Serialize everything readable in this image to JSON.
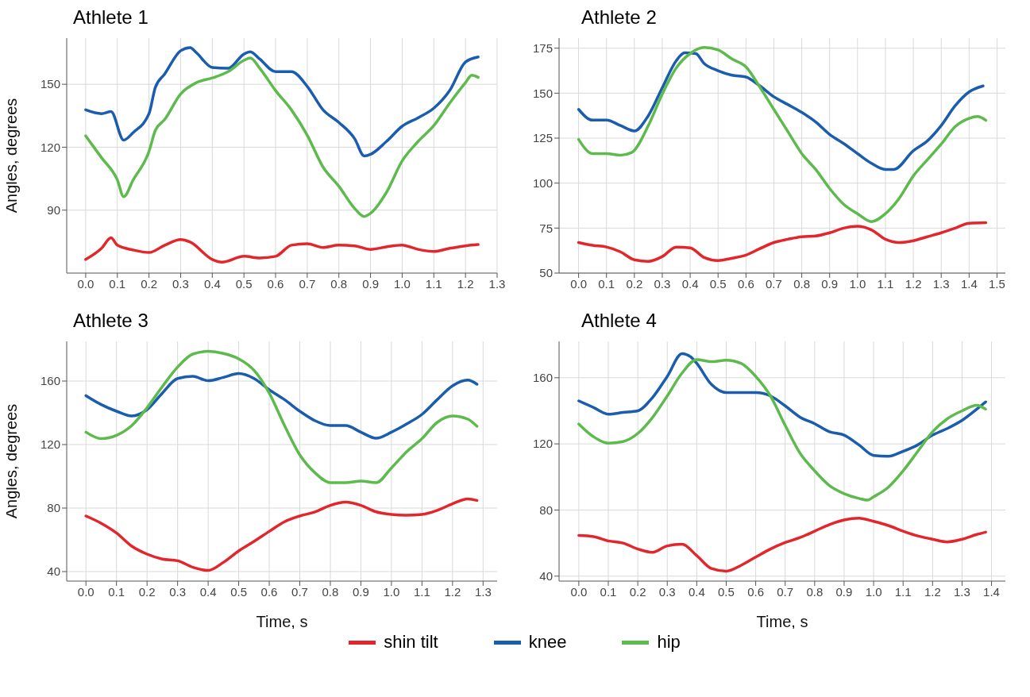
{
  "chart_data": [
    {
      "type": "line",
      "title": "Athlete 1",
      "ylabel": "Angles, degrees",
      "xlim": [
        -0.06,
        1.3
      ],
      "ylim": [
        60,
        172
      ],
      "yticks": [
        90,
        120,
        150
      ],
      "xticks": [
        {
          "value": 0,
          "label": "0.0"
        },
        {
          "value": 0.1,
          "label": "0.1"
        },
        {
          "value": 0.2,
          "label": "0.2"
        },
        {
          "value": 0.3,
          "label": "0.3"
        },
        {
          "value": 0.4,
          "label": "0.4"
        },
        {
          "value": 0.5,
          "label": "0.5"
        },
        {
          "value": 0.6,
          "label": "0.6"
        },
        {
          "value": 0.7,
          "label": "0.7"
        },
        {
          "value": 0.8,
          "label": "0.8"
        },
        {
          "value": 0.9,
          "label": "0.9"
        },
        {
          "value": 1,
          "label": "1.0"
        },
        {
          "value": 1.1,
          "label": "1.1"
        },
        {
          "value": 1.2,
          "label": "1.2"
        },
        {
          "value": 1.3,
          "label": "1.3"
        }
      ],
      "grid": true,
      "legend": "bottom",
      "series": [
        {
          "name": "shin tilt",
          "color": "#e3262b",
          "x": [
            0,
            0.05,
            0.08,
            0.1,
            0.15,
            0.2,
            0.25,
            0.3,
            0.33,
            0.4,
            0.43,
            0.5,
            0.55,
            0.6,
            0.65,
            0.7,
            0.75,
            0.8,
            0.85,
            0.9,
            0.95,
            1,
            1.05,
            1.1,
            1.15,
            1.2,
            1.24
          ],
          "values": [
            66.5,
            71.8,
            76.8,
            73.3,
            71,
            69.8,
            73.3,
            76,
            74.8,
            66.5,
            65.2,
            68,
            67.2,
            68,
            73.3,
            74,
            72.2,
            73.3,
            73,
            71.3,
            72.5,
            73.3,
            71.3,
            70.3,
            71.8,
            73,
            73.6
          ]
        },
        {
          "name": "knee",
          "color": "#1a5cad",
          "x": [
            0,
            0.05,
            0.08,
            0.12,
            0.15,
            0.2,
            0.22,
            0.25,
            0.3,
            0.33,
            0.35,
            0.4,
            0.45,
            0.5,
            0.52,
            0.55,
            0.6,
            0.65,
            0.7,
            0.75,
            0.8,
            0.85,
            0.88,
            0.9,
            0.95,
            1,
            1.05,
            1.1,
            1.15,
            1.2,
            1.24
          ],
          "values": [
            137.8,
            136,
            137,
            123.4,
            127,
            136,
            148.5,
            155,
            166,
            167.5,
            165,
            158,
            157.6,
            164.4,
            165.5,
            162,
            156,
            156,
            149,
            137.8,
            131.8,
            124,
            115.8,
            116.6,
            122.7,
            130,
            134,
            138.6,
            147,
            160.6,
            163
          ]
        },
        {
          "name": "hip",
          "color": "#5dba4c",
          "x": [
            0,
            0.05,
            0.1,
            0.12,
            0.15,
            0.2,
            0.22,
            0.25,
            0.3,
            0.35,
            0.4,
            0.45,
            0.5,
            0.52,
            0.55,
            0.6,
            0.65,
            0.7,
            0.75,
            0.8,
            0.85,
            0.88,
            0.9,
            0.95,
            1,
            1.05,
            1.1,
            1.15,
            1.2,
            1.22,
            1.24
          ],
          "values": [
            125.4,
            115,
            104.4,
            96.4,
            104.4,
            118,
            128,
            133.3,
            145.4,
            150.8,
            153,
            156,
            161.4,
            162.5,
            157.6,
            147,
            137.8,
            125.7,
            110.5,
            101.4,
            90.8,
            87,
            88.5,
            98.4,
            113.5,
            122.7,
            130.3,
            141,
            150.8,
            154.3,
            153.3
          ]
        }
      ]
    },
    {
      "type": "line",
      "title": "Athlete 2",
      "xlim": [
        -0.07,
        1.53
      ],
      "ylim": [
        50,
        180.6
      ],
      "yticks": [
        50,
        75,
        100,
        125,
        150,
        175
      ],
      "xticks": [
        {
          "value": 0,
          "label": "0.0"
        },
        {
          "value": 0.1,
          "label": "0.1"
        },
        {
          "value": 0.2,
          "label": "0.2"
        },
        {
          "value": 0.3,
          "label": "0.3"
        },
        {
          "value": 0.4,
          "label": "0.4"
        },
        {
          "value": 0.5,
          "label": "0.5"
        },
        {
          "value": 0.6,
          "label": "0.6"
        },
        {
          "value": 0.7,
          "label": "0.7"
        },
        {
          "value": 0.8,
          "label": "0.8"
        },
        {
          "value": 0.9,
          "label": "0.9"
        },
        {
          "value": 1,
          "label": "1.0"
        },
        {
          "value": 1.1,
          "label": "1.1"
        },
        {
          "value": 1.2,
          "label": "1.2"
        },
        {
          "value": 1.3,
          "label": "1.3"
        },
        {
          "value": 1.4,
          "label": "1.4"
        },
        {
          "value": 1.5,
          "label": "1.5"
        }
      ],
      "grid": true,
      "series": [
        {
          "color": "#e3262b",
          "x": [
            0,
            0.05,
            0.1,
            0.15,
            0.2,
            0.25,
            0.3,
            0.35,
            0.4,
            0.45,
            0.5,
            0.55,
            0.6,
            0.65,
            0.7,
            0.75,
            0.8,
            0.85,
            0.9,
            0.95,
            1,
            1.05,
            1.1,
            1.15,
            1.2,
            1.25,
            1.3,
            1.35,
            1.4,
            1.46
          ],
          "values": [
            67,
            65.4,
            64.5,
            61.8,
            57.4,
            56.5,
            59.2,
            64.5,
            64,
            58.7,
            57,
            58.3,
            60,
            63.6,
            67,
            68.8,
            70.2,
            70.6,
            72.4,
            75,
            76,
            74,
            68.8,
            67,
            68,
            70.2,
            72.4,
            75,
            77.7,
            78
          ]
        },
        {
          "color": "#1a5cad",
          "x": [
            0,
            0.05,
            0.1,
            0.15,
            0.2,
            0.25,
            0.3,
            0.35,
            0.38,
            0.42,
            0.45,
            0.5,
            0.55,
            0.6,
            0.65,
            0.7,
            0.75,
            0.8,
            0.85,
            0.9,
            0.95,
            1,
            1.05,
            1.1,
            1.13,
            1.2,
            1.25,
            1.3,
            1.35,
            1.4,
            1.45
          ],
          "values": [
            141,
            135,
            135,
            132,
            129,
            137.5,
            153,
            168,
            172.4,
            172,
            166.5,
            162.5,
            160,
            159,
            154,
            148,
            143.7,
            139.3,
            134,
            127,
            122,
            116.4,
            111,
            107.6,
            107.6,
            118,
            123.4,
            132,
            143,
            150.7,
            154
          ]
        },
        {
          "color": "#5dba4c",
          "x": [
            0,
            0.05,
            0.1,
            0.15,
            0.19,
            0.25,
            0.3,
            0.35,
            0.4,
            0.45,
            0.5,
            0.55,
            0.6,
            0.65,
            0.7,
            0.75,
            0.8,
            0.85,
            0.9,
            0.95,
            1,
            1.05,
            1.1,
            1.15,
            1.2,
            1.25,
            1.3,
            1.35,
            1.4,
            1.43,
            1.46
          ],
          "values": [
            124.3,
            116.4,
            116.4,
            115.5,
            117,
            132,
            149.5,
            164,
            172,
            175.4,
            174,
            169,
            164.6,
            153.3,
            141,
            128.7,
            116.4,
            107.6,
            97,
            88.3,
            83,
            78.6,
            83,
            91.7,
            104,
            112.9,
            121.7,
            131.4,
            136,
            137,
            134.9
          ]
        }
      ]
    },
    {
      "type": "line",
      "title": "Athlete 3",
      "xlabel": "Time, s",
      "ylabel": "Angles, degrees",
      "xlim": [
        -0.063,
        1.346
      ],
      "ylim": [
        34,
        185
      ],
      "yticks": [
        40,
        80,
        120,
        160
      ],
      "xticks": [
        {
          "value": 0,
          "label": "0.0"
        },
        {
          "value": 0.1,
          "label": "0.1"
        },
        {
          "value": 0.2,
          "label": "0.2"
        },
        {
          "value": 0.3,
          "label": "0.3"
        },
        {
          "value": 0.4,
          "label": "0.4"
        },
        {
          "value": 0.5,
          "label": "0.5"
        },
        {
          "value": 0.6,
          "label": "0.6"
        },
        {
          "value": 0.7,
          "label": "0.7"
        },
        {
          "value": 0.8,
          "label": "0.8"
        },
        {
          "value": 0.9,
          "label": "0.9"
        },
        {
          "value": 1,
          "label": "1.0"
        },
        {
          "value": 1.1,
          "label": "1.1"
        },
        {
          "value": 1.2,
          "label": "1.2"
        },
        {
          "value": 1.3,
          "label": "1.3"
        }
      ],
      "grid": true,
      "series": [
        {
          "color": "#e3262b",
          "x": [
            0,
            0.05,
            0.1,
            0.15,
            0.2,
            0.25,
            0.3,
            0.35,
            0.4,
            0.45,
            0.5,
            0.55,
            0.6,
            0.65,
            0.7,
            0.75,
            0.8,
            0.85,
            0.9,
            0.95,
            1,
            1.05,
            1.1,
            1.15,
            1.2,
            1.25,
            1.28
          ],
          "values": [
            75,
            70.4,
            64.3,
            56,
            51,
            47.9,
            46.8,
            42.7,
            40.7,
            45.8,
            53,
            59,
            65.3,
            71.4,
            75,
            77.6,
            81.7,
            83.7,
            81.7,
            77.6,
            76,
            75.5,
            76,
            78.6,
            82.7,
            85.8,
            84.8
          ]
        },
        {
          "color": "#1a5cad",
          "x": [
            0,
            0.05,
            0.1,
            0.15,
            0.2,
            0.25,
            0.3,
            0.35,
            0.4,
            0.45,
            0.5,
            0.55,
            0.6,
            0.65,
            0.7,
            0.75,
            0.8,
            0.85,
            0.9,
            0.95,
            1,
            1.05,
            1.1,
            1.15,
            1.2,
            1.25,
            1.28
          ],
          "values": [
            150.8,
            145.2,
            141,
            138,
            142,
            152.4,
            161.6,
            163,
            160.2,
            162.3,
            164.7,
            161.6,
            154.5,
            148.3,
            141,
            135,
            132,
            132,
            127.8,
            124,
            127.8,
            133,
            139,
            148.3,
            157,
            160.6,
            158
          ]
        },
        {
          "color": "#5dba4c",
          "x": [
            0,
            0.05,
            0.1,
            0.15,
            0.2,
            0.25,
            0.3,
            0.35,
            0.4,
            0.45,
            0.5,
            0.55,
            0.6,
            0.65,
            0.7,
            0.75,
            0.8,
            0.85,
            0.9,
            0.95,
            1,
            1.05,
            1.1,
            1.15,
            1.2,
            1.25,
            1.28
          ],
          "values": [
            127.8,
            123.7,
            125.8,
            132,
            143.2,
            156.5,
            168.8,
            177,
            178.7,
            177.4,
            174,
            166.8,
            152.4,
            132,
            113.5,
            102.2,
            96,
            96,
            97,
            96,
            105.3,
            115.5,
            123.7,
            134,
            138,
            136,
            131.5
          ]
        }
      ]
    },
    {
      "type": "line",
      "title": "Athlete 4",
      "xlabel": "Time, s",
      "xlim": [
        -0.067,
        1.447
      ],
      "ylim": [
        37,
        182
      ],
      "yticks": [
        40,
        80,
        120,
        160
      ],
      "xticks": [
        {
          "value": 0,
          "label": "0.0"
        },
        {
          "value": 0.1,
          "label": "0.1"
        },
        {
          "value": 0.2,
          "label": "0.2"
        },
        {
          "value": 0.3,
          "label": "0.3"
        },
        {
          "value": 0.4,
          "label": "0.4"
        },
        {
          "value": 0.5,
          "label": "0.5"
        },
        {
          "value": 0.6,
          "label": "0.6"
        },
        {
          "value": 0.7,
          "label": "0.7"
        },
        {
          "value": 0.8,
          "label": "0.8"
        },
        {
          "value": 0.9,
          "label": "0.9"
        },
        {
          "value": 1,
          "label": "1.0"
        },
        {
          "value": 1.1,
          "label": "1.1"
        },
        {
          "value": 1.2,
          "label": "1.2"
        },
        {
          "value": 1.3,
          "label": "1.3"
        },
        {
          "value": 1.4,
          "label": "1.4"
        }
      ],
      "grid": true,
      "series": [
        {
          "color": "#e3262b",
          "x": [
            0,
            0.05,
            0.1,
            0.15,
            0.2,
            0.25,
            0.3,
            0.35,
            0.4,
            0.45,
            0.5,
            0.55,
            0.6,
            0.65,
            0.7,
            0.75,
            0.8,
            0.85,
            0.9,
            0.95,
            1,
            1.05,
            1.1,
            1.15,
            1.2,
            1.25,
            1.3,
            1.35,
            1.38
          ],
          "values": [
            64.6,
            63.9,
            61.3,
            60,
            56.4,
            54.4,
            58.3,
            59.3,
            52.4,
            44.6,
            43,
            46.5,
            51.5,
            56.4,
            60.3,
            63.3,
            67.2,
            71.2,
            74,
            75,
            73.1,
            70.6,
            67.2,
            64.3,
            62.3,
            60.7,
            62.3,
            65.2,
            66.6
          ]
        },
        {
          "color": "#1a5cad",
          "x": [
            0,
            0.05,
            0.1,
            0.15,
            0.2,
            0.25,
            0.3,
            0.35,
            0.38,
            0.4,
            0.45,
            0.5,
            0.55,
            0.6,
            0.65,
            0.7,
            0.75,
            0.8,
            0.85,
            0.9,
            0.95,
            1,
            1.05,
            1.1,
            1.15,
            1.2,
            1.25,
            1.3,
            1.35,
            1.38
          ],
          "values": [
            146,
            142,
            138,
            139,
            140,
            148,
            160.8,
            174.6,
            172.6,
            168.7,
            155.9,
            151,
            151,
            151,
            149,
            143,
            136.2,
            132.2,
            127.3,
            125.3,
            119.4,
            113,
            112.5,
            115.5,
            119.4,
            125.3,
            129.3,
            134.2,
            141,
            145.4
          ]
        },
        {
          "color": "#5dba4c",
          "x": [
            0,
            0.05,
            0.1,
            0.15,
            0.2,
            0.25,
            0.3,
            0.35,
            0.4,
            0.45,
            0.5,
            0.55,
            0.6,
            0.65,
            0.7,
            0.75,
            0.8,
            0.85,
            0.9,
            0.95,
            0.98,
            1,
            1.05,
            1.1,
            1.15,
            1.2,
            1.25,
            1.3,
            1.35,
            1.38
          ],
          "values": [
            132,
            124.3,
            120.4,
            121.4,
            126.3,
            136,
            149,
            162.8,
            171,
            169.7,
            170.6,
            168.7,
            160.8,
            149,
            131.2,
            114.5,
            103.7,
            94.8,
            89.9,
            87,
            86,
            88,
            93.8,
            103.7,
            115.5,
            127.3,
            135.2,
            140,
            143.4,
            141
          ]
        }
      ]
    }
  ]
}
